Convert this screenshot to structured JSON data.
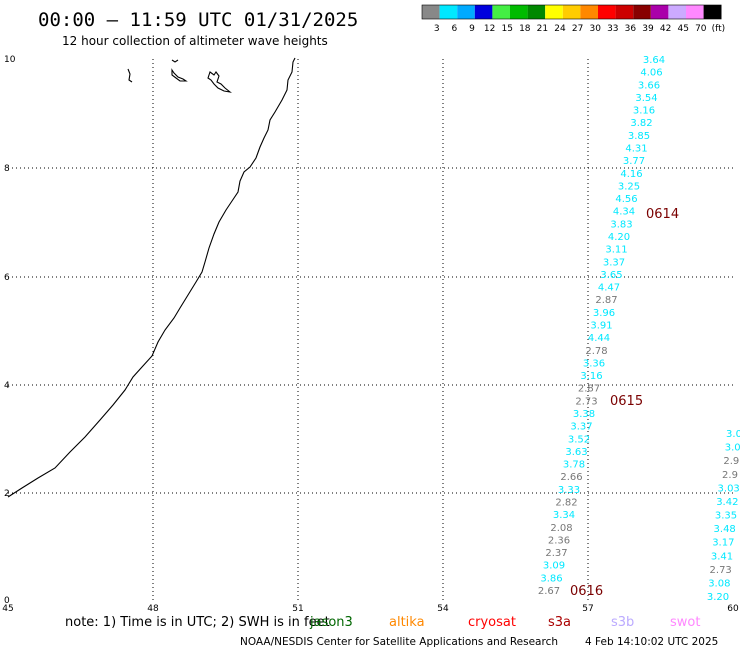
{
  "header": {
    "title": "00:00 – 11:59 UTC 01/31/2025",
    "subtitle": "12 hour collection of altimeter wave heights"
  },
  "legend": {
    "colors": [
      "#888888",
      "#00e8ff",
      "#00aaff",
      "#0000dd",
      "#44ee44",
      "#00bb00",
      "#008800",
      "#ffff00",
      "#ffcc00",
      "#ff8800",
      "#ff0000",
      "#cc0000",
      "#880000",
      "#aa00aa",
      "#ccaaff",
      "#ff88ff",
      "#000000"
    ],
    "labels": [
      "3",
      "6",
      "9",
      "12",
      "15",
      "18",
      "21",
      "24",
      "27",
      "30",
      "33",
      "36",
      "39",
      "42",
      "45",
      "70",
      "(ft)"
    ]
  },
  "axes": {
    "x_ticks": [
      "45",
      "48",
      "51",
      "54",
      "57",
      "60"
    ],
    "y_ticks": [
      "10",
      "8",
      "6",
      "4",
      "2",
      "0"
    ]
  },
  "tracks": [
    {
      "name": "track-1",
      "labels": [
        {
          "t": "3.64",
          "c": "#00e8ff"
        },
        {
          "t": "4.06",
          "c": "#00e8ff"
        },
        {
          "t": "3.66",
          "c": "#00e8ff"
        },
        {
          "t": "3.54",
          "c": "#00e8ff"
        },
        {
          "t": "3.16",
          "c": "#00e8ff"
        },
        {
          "t": "3.82",
          "c": "#00e8ff"
        },
        {
          "t": "3.85",
          "c": "#00e8ff"
        },
        {
          "t": "4.31",
          "c": "#00e8ff"
        },
        {
          "t": "3.77",
          "c": "#00e8ff"
        },
        {
          "t": "4.16",
          "c": "#00e8ff"
        },
        {
          "t": "3.25",
          "c": "#00e8ff"
        },
        {
          "t": "4.56",
          "c": "#00e8ff"
        },
        {
          "t": "4.34",
          "c": "#00e8ff"
        },
        {
          "t": "3.83",
          "c": "#00e8ff"
        },
        {
          "t": "4.20",
          "c": "#00e8ff"
        },
        {
          "t": "3.11",
          "c": "#00e8ff"
        },
        {
          "t": "3.37",
          "c": "#00e8ff"
        },
        {
          "t": "3.65",
          "c": "#00e8ff"
        },
        {
          "t": "4.47",
          "c": "#00e8ff"
        },
        {
          "t": "2.87",
          "c": "#777777"
        },
        {
          "t": "3.96",
          "c": "#00e8ff"
        },
        {
          "t": "3.91",
          "c": "#00e8ff"
        },
        {
          "t": "4.44",
          "c": "#00e8ff"
        },
        {
          "t": "2.78",
          "c": "#777777"
        },
        {
          "t": "3.36",
          "c": "#00e8ff"
        },
        {
          "t": "3.16",
          "c": "#00e8ff"
        },
        {
          "t": "2.87",
          "c": "#777777"
        },
        {
          "t": "2.73",
          "c": "#777777"
        },
        {
          "t": "3.38",
          "c": "#00e8ff"
        },
        {
          "t": "3.37",
          "c": "#00e8ff"
        },
        {
          "t": "3.52",
          "c": "#00e8ff"
        },
        {
          "t": "3.63",
          "c": "#00e8ff"
        },
        {
          "t": "3.78",
          "c": "#00e8ff"
        },
        {
          "t": "2.66",
          "c": "#777777"
        },
        {
          "t": "3.33",
          "c": "#00e8ff"
        },
        {
          "t": "2.82",
          "c": "#777777"
        },
        {
          "t": "3.34",
          "c": "#00e8ff"
        },
        {
          "t": "2.08",
          "c": "#777777"
        },
        {
          "t": "2.36",
          "c": "#777777"
        },
        {
          "t": "2.37",
          "c": "#777777"
        },
        {
          "t": "3.09",
          "c": "#00e8ff"
        },
        {
          "t": "3.86",
          "c": "#00e8ff"
        },
        {
          "t": "2.67",
          "c": "#777777"
        }
      ]
    },
    {
      "name": "track-2",
      "labels": [
        {
          "t": "3.0",
          "c": "#00e8ff"
        },
        {
          "t": "3.0",
          "c": "#00e8ff"
        },
        {
          "t": "2.9",
          "c": "#777777"
        },
        {
          "t": "2.9",
          "c": "#777777"
        },
        {
          "t": "3.03",
          "c": "#00e8ff"
        },
        {
          "t": "3.42",
          "c": "#00e8ff"
        },
        {
          "t": "3.35",
          "c": "#00e8ff"
        },
        {
          "t": "3.48",
          "c": "#00e8ff"
        },
        {
          "t": "3.17",
          "c": "#00e8ff"
        },
        {
          "t": "3.41",
          "c": "#00e8ff"
        },
        {
          "t": "2.73",
          "c": "#777777"
        },
        {
          "t": "3.08",
          "c": "#00e8ff"
        },
        {
          "t": "3.20",
          "c": "#00e8ff"
        }
      ]
    }
  ],
  "pass_labels": [
    "0614",
    "0615",
    "0616"
  ],
  "note": "note:  1) Time is in UTC;  2) SWH is in feet",
  "satellites": [
    {
      "name": "jason3",
      "color": "#006600"
    },
    {
      "name": "altika",
      "color": "#ff8800"
    },
    {
      "name": "cryosat",
      "color": "#ff0000"
    },
    {
      "name": "s3a",
      "color": "#aa0000"
    },
    {
      "name": "s3b",
      "color": "#bbaaff"
    },
    {
      "name": "swot",
      "color": "#ff88ff"
    }
  ],
  "footer": {
    "credit": "NOAA/NESDIS Center for Satellite Applications and Research",
    "generated": "4 Feb 14:10:02 UTC 2025"
  }
}
